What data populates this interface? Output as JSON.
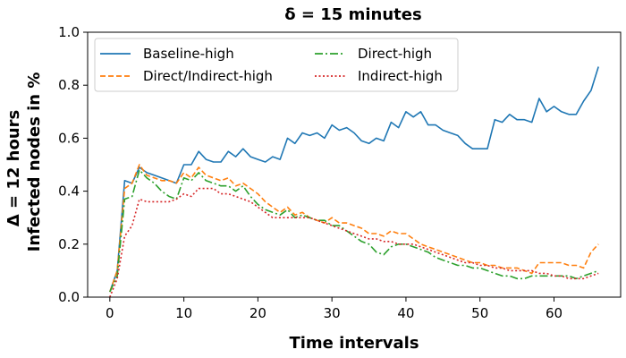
{
  "chart_data": {
    "type": "line",
    "title": "δ = 15 minutes",
    "xlabel": "Time intervals",
    "ylabel_line1": "Δ = 12 hours",
    "ylabel_line2": "Infected nodes in %",
    "xlim": [
      -3,
      69
    ],
    "ylim": [
      0,
      1.0
    ],
    "xticks": [
      0,
      10,
      20,
      30,
      40,
      50,
      60
    ],
    "yticks": [
      0.0,
      0.2,
      0.4,
      0.6,
      0.8,
      1.0
    ],
    "ytick_labels": [
      "0.0",
      "0.2",
      "0.4",
      "0.6",
      "0.8",
      "1.0"
    ],
    "legend_position": "top-left",
    "series": [
      {
        "name": "Baseline-high",
        "color": "#1f77b4",
        "style": "solid",
        "x": [
          0,
          1,
          2,
          3,
          4,
          5,
          6,
          7,
          8,
          9,
          10,
          11,
          12,
          13,
          14,
          15,
          16,
          17,
          18,
          19,
          20,
          21,
          22,
          23,
          24,
          25,
          26,
          27,
          28,
          29,
          30,
          31,
          32,
          33,
          34,
          35,
          36,
          37,
          38,
          39,
          40,
          41,
          42,
          43,
          44,
          45,
          46,
          47,
          48,
          49,
          50,
          51,
          52,
          53,
          54,
          55,
          56,
          57,
          58,
          59,
          60,
          61,
          62,
          63,
          64,
          65,
          66
        ],
        "y": [
          0.02,
          0.1,
          0.44,
          0.43,
          0.49,
          0.47,
          0.46,
          0.45,
          0.44,
          0.43,
          0.5,
          0.5,
          0.55,
          0.52,
          0.51,
          0.51,
          0.55,
          0.53,
          0.56,
          0.53,
          0.52,
          0.51,
          0.53,
          0.52,
          0.6,
          0.58,
          0.62,
          0.61,
          0.62,
          0.6,
          0.65,
          0.63,
          0.64,
          0.62,
          0.59,
          0.58,
          0.6,
          0.59,
          0.66,
          0.64,
          0.7,
          0.68,
          0.7,
          0.65,
          0.65,
          0.63,
          0.62,
          0.61,
          0.58,
          0.56,
          0.56,
          0.56,
          0.67,
          0.66,
          0.69,
          0.67,
          0.67,
          0.66,
          0.75,
          0.7,
          0.72,
          0.7,
          0.69,
          0.69,
          0.74,
          0.78,
          0.87
        ]
      },
      {
        "name": "Direct/Indirect-high",
        "color": "#ff7f0e",
        "style": "dashed",
        "x": [
          0,
          1,
          2,
          3,
          4,
          5,
          6,
          7,
          8,
          9,
          10,
          11,
          12,
          13,
          14,
          15,
          16,
          17,
          18,
          19,
          20,
          21,
          22,
          23,
          24,
          25,
          26,
          27,
          28,
          29,
          30,
          31,
          32,
          33,
          34,
          35,
          36,
          37,
          38,
          39,
          40,
          41,
          42,
          43,
          44,
          45,
          46,
          47,
          48,
          49,
          50,
          51,
          52,
          53,
          54,
          55,
          56,
          57,
          58,
          59,
          60,
          61,
          62,
          63,
          64,
          65,
          66
        ],
        "y": [
          0.02,
          0.1,
          0.41,
          0.43,
          0.5,
          0.46,
          0.45,
          0.44,
          0.44,
          0.43,
          0.47,
          0.45,
          0.49,
          0.46,
          0.45,
          0.44,
          0.45,
          0.42,
          0.43,
          0.41,
          0.39,
          0.36,
          0.34,
          0.32,
          0.34,
          0.31,
          0.32,
          0.3,
          0.29,
          0.28,
          0.3,
          0.28,
          0.28,
          0.27,
          0.26,
          0.24,
          0.24,
          0.23,
          0.25,
          0.24,
          0.24,
          0.22,
          0.2,
          0.19,
          0.18,
          0.17,
          0.16,
          0.15,
          0.14,
          0.13,
          0.13,
          0.12,
          0.12,
          0.11,
          0.11,
          0.11,
          0.1,
          0.09,
          0.13,
          0.13,
          0.13,
          0.13,
          0.12,
          0.12,
          0.11,
          0.17,
          0.2
        ]
      },
      {
        "name": "Direct-high",
        "color": "#2ca02c",
        "style": "dashdot",
        "x": [
          0,
          1,
          2,
          3,
          4,
          5,
          6,
          7,
          8,
          9,
          10,
          11,
          12,
          13,
          14,
          15,
          16,
          17,
          18,
          19,
          20,
          21,
          22,
          23,
          24,
          25,
          26,
          27,
          28,
          29,
          30,
          31,
          32,
          33,
          34,
          35,
          36,
          37,
          38,
          39,
          40,
          41,
          42,
          43,
          44,
          45,
          46,
          47,
          48,
          49,
          50,
          51,
          52,
          53,
          54,
          55,
          56,
          57,
          58,
          59,
          60,
          61,
          62,
          63,
          64,
          65,
          66
        ],
        "y": [
          0.02,
          0.08,
          0.37,
          0.38,
          0.48,
          0.45,
          0.43,
          0.4,
          0.38,
          0.37,
          0.45,
          0.44,
          0.47,
          0.44,
          0.43,
          0.42,
          0.42,
          0.4,
          0.42,
          0.38,
          0.35,
          0.33,
          0.32,
          0.31,
          0.33,
          0.3,
          0.31,
          0.3,
          0.29,
          0.29,
          0.27,
          0.27,
          0.25,
          0.23,
          0.21,
          0.2,
          0.17,
          0.16,
          0.19,
          0.2,
          0.2,
          0.19,
          0.18,
          0.17,
          0.15,
          0.14,
          0.13,
          0.12,
          0.12,
          0.11,
          0.11,
          0.1,
          0.09,
          0.08,
          0.08,
          0.07,
          0.07,
          0.08,
          0.08,
          0.08,
          0.08,
          0.08,
          0.08,
          0.07,
          0.08,
          0.09,
          0.1
        ]
      },
      {
        "name": "Indirect-high",
        "color": "#d62728",
        "style": "dotted",
        "x": [
          0,
          1,
          2,
          3,
          4,
          5,
          6,
          7,
          8,
          9,
          10,
          11,
          12,
          13,
          14,
          15,
          16,
          17,
          18,
          19,
          20,
          21,
          22,
          23,
          24,
          25,
          26,
          27,
          28,
          29,
          30,
          31,
          32,
          33,
          34,
          35,
          36,
          37,
          38,
          39,
          40,
          41,
          42,
          43,
          44,
          45,
          46,
          47,
          48,
          49,
          50,
          51,
          52,
          53,
          54,
          55,
          56,
          57,
          58,
          59,
          60,
          61,
          62,
          63,
          64,
          65,
          66
        ],
        "y": [
          0.0,
          0.07,
          0.23,
          0.27,
          0.37,
          0.36,
          0.36,
          0.36,
          0.36,
          0.37,
          0.39,
          0.38,
          0.41,
          0.41,
          0.41,
          0.39,
          0.39,
          0.38,
          0.37,
          0.36,
          0.34,
          0.32,
          0.3,
          0.3,
          0.3,
          0.3,
          0.3,
          0.3,
          0.29,
          0.28,
          0.27,
          0.26,
          0.25,
          0.24,
          0.23,
          0.22,
          0.22,
          0.21,
          0.21,
          0.2,
          0.2,
          0.2,
          0.19,
          0.18,
          0.17,
          0.16,
          0.15,
          0.14,
          0.13,
          0.13,
          0.12,
          0.12,
          0.11,
          0.11,
          0.1,
          0.1,
          0.1,
          0.1,
          0.09,
          0.09,
          0.08,
          0.08,
          0.07,
          0.07,
          0.07,
          0.08,
          0.09
        ]
      }
    ]
  }
}
